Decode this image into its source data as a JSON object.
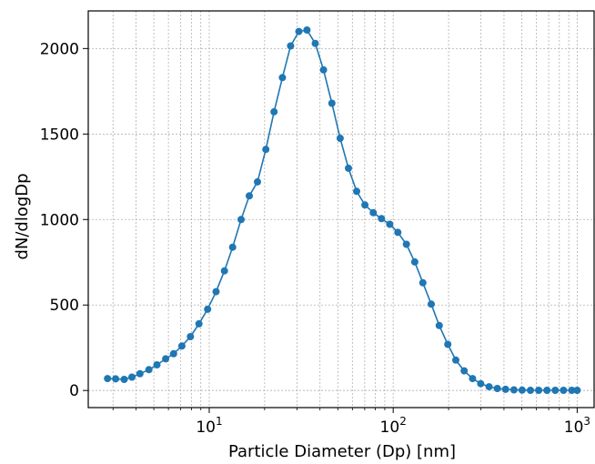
{
  "chart_data": {
    "type": "line",
    "xlabel": "Particle Diameter (Dp) [nm]",
    "ylabel": "dN/dlogDp",
    "x_scale": "log",
    "xlim": [
      2.2,
      1250
    ],
    "ylim": [
      -100,
      2220
    ],
    "x_ticks": [
      {
        "value": 10,
        "label": "10",
        "exp": "1"
      },
      {
        "value": 100,
        "label": "10",
        "exp": "2"
      },
      {
        "value": 1000,
        "label": "10",
        "exp": "3"
      }
    ],
    "y_ticks": [
      {
        "value": 0,
        "label": "0"
      },
      {
        "value": 500,
        "label": "500"
      },
      {
        "value": 1000,
        "label": "1000"
      },
      {
        "value": 1500,
        "label": "1500"
      },
      {
        "value": 2000,
        "label": "2000"
      }
    ],
    "grid": true,
    "line_color": "#1f77b4",
    "x": [
      2.8,
      3.1,
      3.45,
      3.8,
      4.2,
      4.7,
      5.2,
      5.8,
      6.4,
      7.1,
      7.9,
      8.8,
      9.8,
      10.9,
      12.1,
      13.4,
      14.9,
      16.5,
      18.3,
      20.3,
      22.5,
      25.0,
      27.7,
      30.7,
      34.0,
      37.7,
      41.8,
      46.4,
      51.5,
      57.1,
      63.3,
      70.2,
      77.9,
      86.4,
      95.8,
      106,
      118,
      131,
      145,
      161,
      178,
      198,
      219,
      243,
      270,
      299,
      332,
      368,
      408,
      453,
      502,
      557,
      618,
      685,
      760,
      843,
      935,
      1000
    ],
    "values": [
      70,
      68,
      65,
      78,
      98,
      122,
      150,
      185,
      215,
      260,
      315,
      390,
      475,
      578,
      700,
      838,
      1000,
      1138,
      1220,
      1410,
      1630,
      1830,
      2015,
      2100,
      2108,
      2030,
      1875,
      1680,
      1475,
      1300,
      1165,
      1085,
      1040,
      1005,
      972,
      925,
      855,
      752,
      630,
      505,
      380,
      270,
      178,
      115,
      70,
      40,
      22,
      12,
      7,
      4,
      2,
      1,
      1,
      1,
      1,
      1,
      1,
      1
    ]
  }
}
